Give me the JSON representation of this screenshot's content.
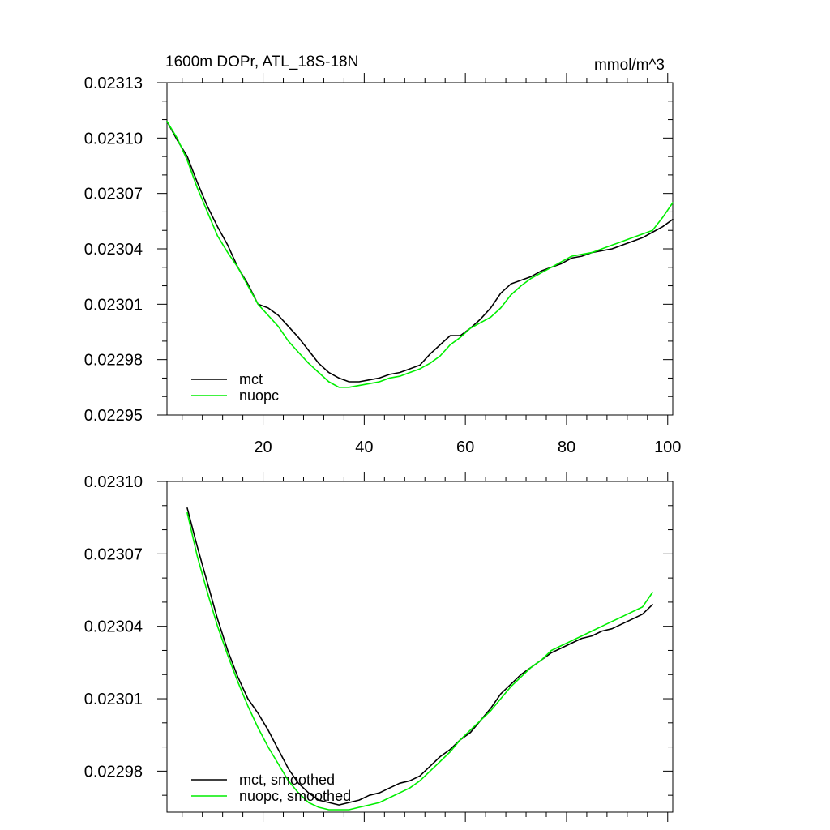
{
  "colors": {
    "mct": "#000000",
    "nuopc": "#00ee00"
  },
  "chart_data": [
    {
      "type": "line",
      "title": "1600m DOPr, ATL_18S-18N",
      "units": "mmol/m^3",
      "xlabel": "",
      "ylabel": "",
      "xlim": [
        1,
        101
      ],
      "ylim": [
        0.02295,
        0.02313
      ],
      "xticks": [
        20,
        40,
        60,
        80,
        100
      ],
      "xtick_labels": [
        "20",
        "40",
        "60",
        "80",
        "100"
      ],
      "yticks": [
        0.02295,
        0.02298,
        0.02301,
        0.02304,
        0.02307,
        0.0231,
        0.02313
      ],
      "ytick_labels": [
        "0.02295",
        "0.02298",
        "0.02301",
        "0.02304",
        "0.02307",
        "0.02310",
        "0.02313"
      ],
      "legend_position": "bottom-left",
      "x": [
        1,
        3,
        5,
        7,
        9,
        11,
        13,
        15,
        17,
        19,
        21,
        23,
        25,
        27,
        29,
        31,
        33,
        35,
        37,
        39,
        41,
        43,
        45,
        47,
        49,
        51,
        53,
        55,
        57,
        59,
        61,
        63,
        65,
        67,
        69,
        71,
        73,
        75,
        77,
        79,
        81,
        83,
        85,
        87,
        89,
        91,
        93,
        95,
        97,
        99,
        101
      ],
      "series": [
        {
          "name": "mct",
          "color": "#000000",
          "values": [
            0.023109,
            0.023099,
            0.02309,
            0.023076,
            0.023063,
            0.023052,
            0.023042,
            0.02303,
            0.023021,
            0.02301,
            0.023008,
            0.023004,
            0.022998,
            0.022992,
            0.022985,
            0.022978,
            0.022973,
            0.02297,
            0.022968,
            0.022968,
            0.022969,
            0.02297,
            0.022972,
            0.022973,
            0.022975,
            0.022977,
            0.022983,
            0.022988,
            0.022993,
            0.022993,
            0.022997,
            0.023002,
            0.023008,
            0.023016,
            0.023021,
            0.023023,
            0.023025,
            0.023028,
            0.02303,
            0.023032,
            0.023035,
            0.023036,
            0.023038,
            0.023039,
            0.02304,
            0.023042,
            0.023044,
            0.023046,
            0.023049,
            0.023052,
            0.023056
          ]
        },
        {
          "name": "nuopc",
          "color": "#00ee00",
          "values": [
            0.023109,
            0.0231,
            0.023088,
            0.023073,
            0.02306,
            0.023047,
            0.023038,
            0.02303,
            0.02302,
            0.02301,
            0.023004,
            0.022998,
            0.02299,
            0.022984,
            0.022978,
            0.022973,
            0.022968,
            0.022965,
            0.022965,
            0.022966,
            0.022967,
            0.022968,
            0.02297,
            0.022971,
            0.022973,
            0.022975,
            0.022978,
            0.022982,
            0.022988,
            0.022992,
            0.022997,
            0.023,
            0.023003,
            0.023008,
            0.023015,
            0.02302,
            0.023024,
            0.023027,
            0.02303,
            0.023033,
            0.023036,
            0.023037,
            0.023038,
            0.02304,
            0.023042,
            0.023044,
            0.023046,
            0.023048,
            0.02305,
            0.023057,
            0.023065
          ]
        }
      ]
    },
    {
      "type": "line",
      "title": "",
      "units": "",
      "xlabel": "",
      "ylabel": "",
      "xlim": [
        1,
        101
      ],
      "ylim": [
        0.022963,
        0.0231
      ],
      "xticks": [
        20,
        40,
        60,
        80,
        100
      ],
      "xtick_labels": [],
      "yticks": [
        0.02298,
        0.02301,
        0.02304,
        0.02307,
        0.0231
      ],
      "ytick_labels": [
        "0.02298",
        "0.02301",
        "0.02304",
        "0.02307",
        "0.02310"
      ],
      "legend_position": "bottom-left",
      "x": [
        5,
        7,
        9,
        11,
        13,
        15,
        17,
        19,
        21,
        23,
        25,
        27,
        29,
        31,
        33,
        35,
        37,
        39,
        41,
        43,
        45,
        47,
        49,
        51,
        53,
        55,
        57,
        59,
        61,
        63,
        65,
        67,
        69,
        71,
        73,
        75,
        77,
        79,
        81,
        83,
        85,
        87,
        89,
        91,
        93,
        95,
        97
      ],
      "series": [
        {
          "name": "mct, smoothed",
          "color": "#000000",
          "values": [
            0.023089,
            0.023073,
            0.023058,
            0.023043,
            0.02303,
            0.023019,
            0.02301,
            0.023004,
            0.022997,
            0.022989,
            0.022981,
            0.022975,
            0.022971,
            0.022968,
            0.022967,
            0.022966,
            0.022967,
            0.022968,
            0.02297,
            0.022971,
            0.022973,
            0.022975,
            0.022976,
            0.022978,
            0.022982,
            0.022986,
            0.022989,
            0.022993,
            0.022996,
            0.023001,
            0.023006,
            0.023012,
            0.023016,
            0.02302,
            0.023023,
            0.023026,
            0.023029,
            0.023031,
            0.023033,
            0.023035,
            0.023036,
            0.023038,
            0.023039,
            0.023041,
            0.023043,
            0.023045,
            0.023049
          ]
        },
        {
          "name": "nuopc, smoothed",
          "color": "#00ee00",
          "values": [
            0.023087,
            0.023069,
            0.023054,
            0.02304,
            0.023028,
            0.023017,
            0.023007,
            0.022998,
            0.02299,
            0.022983,
            0.022976,
            0.022971,
            0.022967,
            0.022965,
            0.022964,
            0.022964,
            0.022964,
            0.022965,
            0.022966,
            0.022967,
            0.022969,
            0.022971,
            0.022973,
            0.022976,
            0.02298,
            0.022984,
            0.022988,
            0.022993,
            0.022997,
            0.023001,
            0.023005,
            0.02301,
            0.023015,
            0.023019,
            0.023023,
            0.023026,
            0.02303,
            0.023032,
            0.023034,
            0.023036,
            0.023038,
            0.02304,
            0.023042,
            0.023044,
            0.023046,
            0.023048,
            0.023054
          ]
        }
      ]
    }
  ]
}
